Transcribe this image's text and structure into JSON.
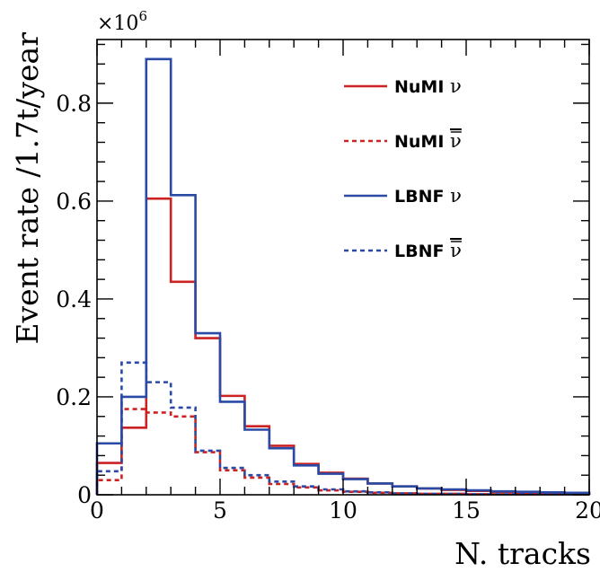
{
  "chart_data": {
    "type": "step",
    "xlabel": "N. tracks",
    "ylabel": "Event rate /1.7t/year",
    "y_multiplier_base": "×10",
    "y_multiplier_exp": "6",
    "xlim": [
      0,
      20
    ],
    "ylim": [
      0,
      0.93
    ],
    "x_ticks": [
      0,
      5,
      10,
      15,
      20
    ],
    "y_ticks": [
      0,
      0.2,
      0.4,
      0.6,
      0.8
    ],
    "y_tick_labels": [
      "0",
      "0.2",
      "0.4",
      "0.6",
      "0.8"
    ],
    "bin_edges": [
      0,
      1,
      2,
      3,
      4,
      5,
      6,
      7,
      8,
      9,
      10,
      11,
      12,
      13,
      14,
      15,
      16,
      17,
      18,
      19,
      20
    ],
    "legend_position": "top-right",
    "series": [
      {
        "name": "NuMI",
        "symbol": "ν",
        "bar": false,
        "color": "#cc2222",
        "style": "solid",
        "values": [
          0.065,
          0.137,
          0.605,
          0.435,
          0.32,
          0.202,
          0.14,
          0.1,
          0.063,
          0.045,
          0.033,
          0.023,
          0.017,
          0.013,
          0.01,
          0.008,
          0.006,
          0.005,
          0.004,
          0.003
        ]
      },
      {
        "name": "NuMI",
        "symbol": "ν",
        "bar": true,
        "color": "#cc2222",
        "style": "dashed",
        "values": [
          0.03,
          0.175,
          0.168,
          0.16,
          0.087,
          0.05,
          0.035,
          0.022,
          0.015,
          0.009,
          0.006,
          0.004,
          0.003,
          0.002,
          0.002,
          0.001,
          0.001,
          0.001,
          0.001,
          0.001
        ]
      },
      {
        "name": "LBNF",
        "symbol": "ν",
        "bar": false,
        "color": "#2a4aa6",
        "style": "solid",
        "values": [
          0.105,
          0.2,
          0.89,
          0.612,
          0.33,
          0.19,
          0.133,
          0.095,
          0.06,
          0.043,
          0.032,
          0.023,
          0.017,
          0.013,
          0.011,
          0.009,
          0.007,
          0.006,
          0.005,
          0.004
        ]
      },
      {
        "name": "LBNF",
        "symbol": "ν",
        "bar": true,
        "color": "#2a4aa6",
        "style": "dashed",
        "values": [
          0.048,
          0.27,
          0.23,
          0.178,
          0.09,
          0.055,
          0.04,
          0.027,
          0.017,
          0.011,
          0.007,
          0.005,
          0.003,
          0.002,
          0.002,
          0.001,
          0.001,
          0.001,
          0.001,
          0.001
        ]
      }
    ]
  }
}
